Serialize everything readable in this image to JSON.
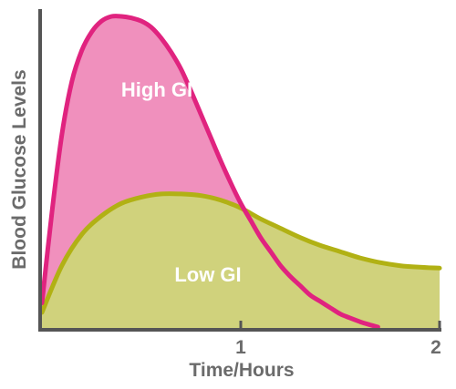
{
  "chart_data": {
    "type": "area",
    "title": "",
    "xlabel": "Time/Hours",
    "ylabel": "Blood Glucose Levels",
    "xlim": [
      0,
      2
    ],
    "ylim": [
      0,
      1
    ],
    "x_ticks": [
      1,
      2
    ],
    "x_tick_labels": [
      "1",
      "2"
    ],
    "grid": false,
    "legend": "none",
    "colors": {
      "axis": "#555555",
      "high_fill": "#f090bd",
      "high_line": "#e0237f",
      "low_fill": "#d0d27c",
      "low_line": "#b1b114"
    },
    "series": [
      {
        "name": "High GI",
        "x": [
          0,
          0.05,
          0.1,
          0.15,
          0.2,
          0.25,
          0.3,
          0.35,
          0.4,
          0.45,
          0.5,
          0.55,
          0.6,
          0.65,
          0.7,
          0.75,
          0.8,
          0.85,
          0.9,
          0.95,
          1.0,
          1.05,
          1.1,
          1.15,
          1.2,
          1.25,
          1.3,
          1.35,
          1.4,
          1.45,
          1.5,
          1.55,
          1.6,
          1.65,
          1.69
        ],
        "y": [
          0.08,
          0.37,
          0.62,
          0.79,
          0.89,
          0.95,
          0.985,
          1.0,
          1.0,
          0.995,
          0.985,
          0.965,
          0.93,
          0.885,
          0.83,
          0.76,
          0.685,
          0.61,
          0.535,
          0.465,
          0.4,
          0.345,
          0.29,
          0.245,
          0.2,
          0.165,
          0.135,
          0.105,
          0.085,
          0.065,
          0.045,
          0.032,
          0.02,
          0.01,
          0.003
        ]
      },
      {
        "name": "Low GI",
        "x": [
          0,
          0.1,
          0.2,
          0.3,
          0.4,
          0.5,
          0.6,
          0.7,
          0.8,
          0.9,
          1.0,
          1.1,
          1.2,
          1.3,
          1.4,
          1.5,
          1.6,
          1.7,
          1.8,
          1.9,
          2.0
        ],
        "y": [
          0.05,
          0.2,
          0.3,
          0.36,
          0.4,
          0.42,
          0.43,
          0.43,
          0.425,
          0.41,
          0.385,
          0.35,
          0.32,
          0.29,
          0.265,
          0.245,
          0.225,
          0.21,
          0.2,
          0.195,
          0.192
        ]
      }
    ]
  }
}
